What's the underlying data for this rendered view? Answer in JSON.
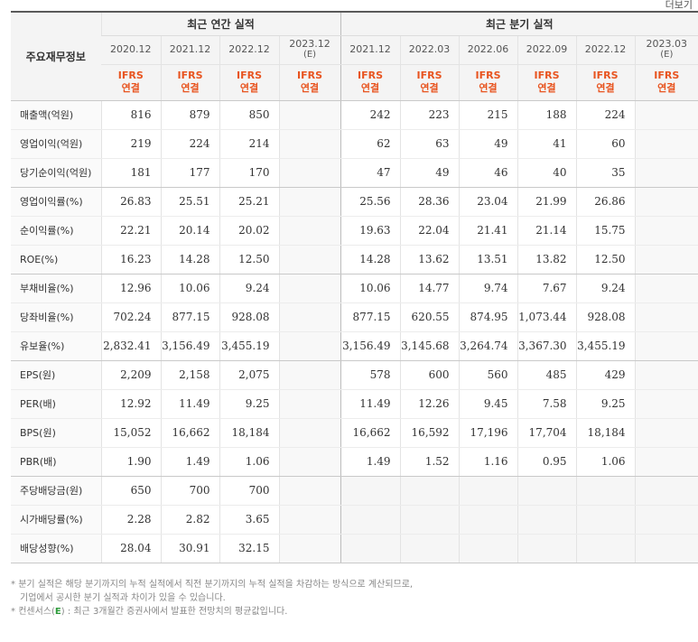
{
  "top": {
    "left_text": "",
    "right_text": "더보기"
  },
  "header": {
    "label_column": "주요재무정보",
    "annual_group": "최근 연간 실적",
    "quarterly_group": "최근 분기 실적",
    "annual_periods": [
      {
        "period": "2020.12",
        "est": ""
      },
      {
        "period": "2021.12",
        "est": ""
      },
      {
        "period": "2022.12",
        "est": ""
      },
      {
        "period": "2023.12",
        "est": "(E)"
      }
    ],
    "quarterly_periods": [
      {
        "period": "2021.12",
        "est": ""
      },
      {
        "period": "2022.03",
        "est": ""
      },
      {
        "period": "2022.06",
        "est": ""
      },
      {
        "period": "2022.09",
        "est": ""
      },
      {
        "period": "2022.12",
        "est": ""
      },
      {
        "period": "2023.03",
        "est": "(E)"
      }
    ],
    "basis_line1": "IFRS",
    "basis_line2": "연결"
  },
  "rows": [
    {
      "label": "매출액(억원)",
      "annual": [
        "816",
        "879",
        "850",
        ""
      ],
      "quarterly": [
        "242",
        "223",
        "215",
        "188",
        "224",
        ""
      ]
    },
    {
      "label": "영업이익(억원)",
      "annual": [
        "219",
        "224",
        "214",
        ""
      ],
      "quarterly": [
        "62",
        "63",
        "49",
        "41",
        "60",
        ""
      ]
    },
    {
      "label": "당기순이익(억원)",
      "annual": [
        "181",
        "177",
        "170",
        ""
      ],
      "quarterly": [
        "47",
        "49",
        "46",
        "40",
        "35",
        ""
      ]
    },
    {
      "label": "영업이익률(%)",
      "annual": [
        "26.83",
        "25.51",
        "25.21",
        ""
      ],
      "quarterly": [
        "25.56",
        "28.36",
        "23.04",
        "21.99",
        "26.86",
        ""
      ]
    },
    {
      "label": "순이익률(%)",
      "annual": [
        "22.21",
        "20.14",
        "20.02",
        ""
      ],
      "quarterly": [
        "19.63",
        "22.04",
        "21.41",
        "21.14",
        "15.75",
        ""
      ]
    },
    {
      "label": "ROE(%)",
      "annual": [
        "16.23",
        "14.28",
        "12.50",
        ""
      ],
      "quarterly": [
        "14.28",
        "13.62",
        "13.51",
        "13.82",
        "12.50",
        ""
      ]
    },
    {
      "label": "부채비율(%)",
      "annual": [
        "12.96",
        "10.06",
        "9.24",
        ""
      ],
      "quarterly": [
        "10.06",
        "14.77",
        "9.74",
        "7.67",
        "9.24",
        ""
      ]
    },
    {
      "label": "당좌비율(%)",
      "annual": [
        "702.24",
        "877.15",
        "928.08",
        ""
      ],
      "quarterly": [
        "877.15",
        "620.55",
        "874.95",
        "1,073.44",
        "928.08",
        ""
      ]
    },
    {
      "label": "유보율(%)",
      "annual": [
        "2,832.41",
        "3,156.49",
        "3,455.19",
        ""
      ],
      "quarterly": [
        "3,156.49",
        "3,145.68",
        "3,264.74",
        "3,367.30",
        "3,455.19",
        ""
      ]
    },
    {
      "label": "EPS(원)",
      "annual": [
        "2,209",
        "2,158",
        "2,075",
        ""
      ],
      "quarterly": [
        "578",
        "600",
        "560",
        "485",
        "429",
        ""
      ]
    },
    {
      "label": "PER(배)",
      "annual": [
        "12.92",
        "11.49",
        "9.25",
        ""
      ],
      "quarterly": [
        "11.49",
        "12.26",
        "9.45",
        "7.58",
        "9.25",
        ""
      ]
    },
    {
      "label": "BPS(원)",
      "annual": [
        "15,052",
        "16,662",
        "18,184",
        ""
      ],
      "quarterly": [
        "16,662",
        "16,592",
        "17,196",
        "17,704",
        "18,184",
        ""
      ]
    },
    {
      "label": "PBR(배)",
      "annual": [
        "1.90",
        "1.49",
        "1.06",
        ""
      ],
      "quarterly": [
        "1.49",
        "1.52",
        "1.16",
        "0.95",
        "1.06",
        ""
      ]
    },
    {
      "label": "주당배당금(원)",
      "annual": [
        "650",
        "700",
        "700",
        ""
      ],
      "quarterly": [
        "",
        "",
        "",
        "",
        "",
        ""
      ]
    },
    {
      "label": "시가배당률(%)",
      "annual": [
        "2.28",
        "2.82",
        "3.65",
        ""
      ],
      "quarterly": [
        "",
        "",
        "",
        "",
        "",
        ""
      ]
    },
    {
      "label": "배당성향(%)",
      "annual": [
        "28.04",
        "30.91",
        "32.15",
        ""
      ],
      "quarterly": [
        "",
        "",
        "",
        "",
        "",
        ""
      ]
    }
  ],
  "notes": {
    "line1": "분기 실적은 해당 분기까지의 누적 실적에서 직전 분기까지의 누적 실적을 차감하는 방식으로 계산되므로,",
    "line2": "기업에서 공시한 분기 실적과 차이가 있을 수 있습니다.",
    "line3_prefix": "컨센서스(",
    "line3_e": "E",
    "line3_suffix": ") : 최근 3개월간 증권사에서 발표한 전망치의 평균값입니다."
  }
}
